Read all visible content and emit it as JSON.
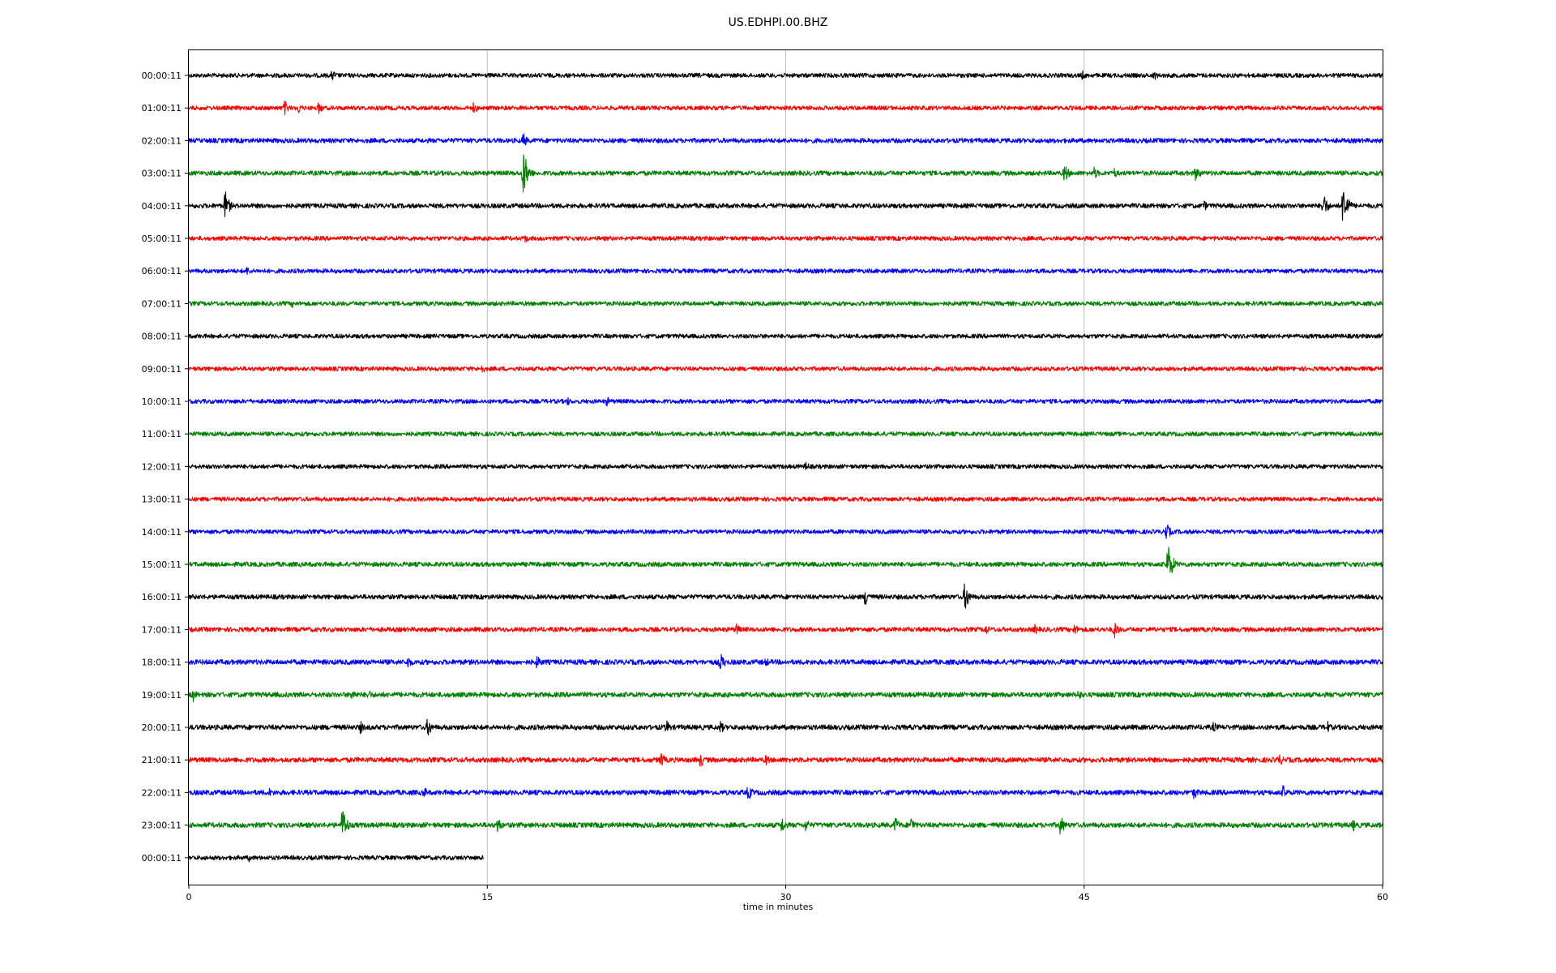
{
  "chart_data": {
    "type": "line",
    "title": "US.EDHPI.00.BHZ",
    "xlabel": "time in minutes",
    "ylabel": "",
    "xlim": [
      0,
      60
    ],
    "x_ticks": [
      0,
      15,
      30,
      45,
      60
    ],
    "x_tick_labels": [
      "0",
      "15",
      "30",
      "45",
      "60"
    ],
    "grid": "vertical lines at x ticks",
    "color_cycle": [
      "#000000",
      "#ff0000",
      "#0000ff",
      "#008000"
    ],
    "rows": [
      {
        "label": "00:00:11",
        "color": "#000000",
        "end_minute": 60,
        "noise": 0.12,
        "events": [
          {
            "t": 7.2,
            "amp": 0.35
          },
          {
            "t": 44.9,
            "amp": 0.3
          },
          {
            "t": 48.5,
            "amp": 0.3
          }
        ]
      },
      {
        "label": "01:00:11",
        "color": "#ff0000",
        "end_minute": 60,
        "noise": 0.12,
        "events": [
          {
            "t": 4.8,
            "amp": 0.45
          },
          {
            "t": 5.5,
            "amp": 0.35
          },
          {
            "t": 6.5,
            "amp": 0.4
          },
          {
            "t": 14.3,
            "amp": 0.35
          }
        ]
      },
      {
        "label": "02:00:11",
        "color": "#0000ff",
        "end_minute": 60,
        "noise": 0.13,
        "events": [
          {
            "t": 16.8,
            "amp": 0.45
          }
        ]
      },
      {
        "label": "03:00:11",
        "color": "#008000",
        "end_minute": 60,
        "noise": 0.13,
        "events": [
          {
            "t": 16.8,
            "amp": 1.5
          },
          {
            "t": 44.0,
            "amp": 0.6
          },
          {
            "t": 45.5,
            "amp": 0.4
          },
          {
            "t": 46.5,
            "amp": 0.35
          },
          {
            "t": 50.6,
            "amp": 0.5
          }
        ]
      },
      {
        "label": "04:00:11",
        "color": "#000000",
        "end_minute": 60,
        "noise": 0.13,
        "events": [
          {
            "t": 1.8,
            "amp": 0.9
          },
          {
            "t": 51.0,
            "amp": 0.35
          },
          {
            "t": 57.0,
            "amp": 0.8
          },
          {
            "t": 58.0,
            "amp": 1.4
          }
        ]
      },
      {
        "label": "05:00:11",
        "color": "#ff0000",
        "end_minute": 60,
        "noise": 0.12,
        "events": [
          {
            "t": 16.9,
            "amp": 0.3
          }
        ]
      },
      {
        "label": "06:00:11",
        "color": "#0000ff",
        "end_minute": 60,
        "noise": 0.12,
        "events": [
          {
            "t": 2.9,
            "amp": 0.3
          }
        ]
      },
      {
        "label": "07:00:11",
        "color": "#008000",
        "end_minute": 60,
        "noise": 0.12,
        "events": [
          {
            "t": 5.2,
            "amp": 0.25
          }
        ]
      },
      {
        "label": "08:00:11",
        "color": "#000000",
        "end_minute": 60,
        "noise": 0.12,
        "events": []
      },
      {
        "label": "09:00:11",
        "color": "#ff0000",
        "end_minute": 60,
        "noise": 0.12,
        "events": [
          {
            "t": 14.7,
            "amp": 0.3
          }
        ]
      },
      {
        "label": "10:00:11",
        "color": "#0000ff",
        "end_minute": 60,
        "noise": 0.12,
        "events": [
          {
            "t": 19.0,
            "amp": 0.3
          },
          {
            "t": 21.0,
            "amp": 0.3
          }
        ]
      },
      {
        "label": "11:00:11",
        "color": "#008000",
        "end_minute": 60,
        "noise": 0.12,
        "events": []
      },
      {
        "label": "12:00:11",
        "color": "#000000",
        "end_minute": 60,
        "noise": 0.12,
        "events": [
          {
            "t": 31.0,
            "amp": 0.3
          }
        ]
      },
      {
        "label": "13:00:11",
        "color": "#ff0000",
        "end_minute": 60,
        "noise": 0.12,
        "events": []
      },
      {
        "label": "14:00:11",
        "color": "#0000ff",
        "end_minute": 60,
        "noise": 0.12,
        "events": [
          {
            "t": 49.1,
            "amp": 0.6
          }
        ]
      },
      {
        "label": "15:00:11",
        "color": "#008000",
        "end_minute": 60,
        "noise": 0.13,
        "events": [
          {
            "t": 49.2,
            "amp": 1.3
          }
        ]
      },
      {
        "label": "16:00:11",
        "color": "#000000",
        "end_minute": 60,
        "noise": 0.13,
        "events": [
          {
            "t": 34.0,
            "amp": 0.6
          },
          {
            "t": 39.0,
            "amp": 0.9
          }
        ]
      },
      {
        "label": "17:00:11",
        "color": "#ff0000",
        "end_minute": 60,
        "noise": 0.13,
        "events": [
          {
            "t": 27.5,
            "amp": 0.4
          },
          {
            "t": 40.0,
            "amp": 0.4
          },
          {
            "t": 42.5,
            "amp": 0.35
          },
          {
            "t": 44.5,
            "amp": 0.4
          },
          {
            "t": 46.5,
            "amp": 0.55
          }
        ]
      },
      {
        "label": "18:00:11",
        "color": "#0000ff",
        "end_minute": 60,
        "noise": 0.14,
        "events": [
          {
            "t": 11.0,
            "amp": 0.4
          },
          {
            "t": 17.5,
            "amp": 0.45
          },
          {
            "t": 26.7,
            "amp": 0.6
          },
          {
            "t": 29.0,
            "amp": 0.3
          }
        ]
      },
      {
        "label": "19:00:11",
        "color": "#008000",
        "end_minute": 60,
        "noise": 0.14,
        "events": [
          {
            "t": 0.2,
            "amp": 0.4
          },
          {
            "t": 8.2,
            "amp": 0.4
          },
          {
            "t": 9.0,
            "amp": 0.35
          },
          {
            "t": 44.7,
            "amp": 0.35
          }
        ]
      },
      {
        "label": "20:00:11",
        "color": "#000000",
        "end_minute": 60,
        "noise": 0.14,
        "events": [
          {
            "t": 8.6,
            "amp": 0.4
          },
          {
            "t": 12.0,
            "amp": 0.6
          },
          {
            "t": 24.0,
            "amp": 0.45
          },
          {
            "t": 26.7,
            "amp": 0.4
          },
          {
            "t": 51.5,
            "amp": 0.35
          },
          {
            "t": 57.2,
            "amp": 0.4
          }
        ]
      },
      {
        "label": "21:00:11",
        "color": "#ff0000",
        "end_minute": 60,
        "noise": 0.14,
        "events": [
          {
            "t": 23.7,
            "amp": 0.55
          },
          {
            "t": 25.7,
            "amp": 0.5
          },
          {
            "t": 29.0,
            "amp": 0.35
          },
          {
            "t": 54.8,
            "amp": 0.4
          }
        ]
      },
      {
        "label": "22:00:11",
        "color": "#0000ff",
        "end_minute": 60,
        "noise": 0.14,
        "events": [
          {
            "t": 4.0,
            "amp": 0.3
          },
          {
            "t": 11.8,
            "amp": 0.35
          },
          {
            "t": 28.1,
            "amp": 0.5
          },
          {
            "t": 50.5,
            "amp": 0.45
          },
          {
            "t": 55.0,
            "amp": 0.45
          }
        ]
      },
      {
        "label": "23:00:11",
        "color": "#008000",
        "end_minute": 60,
        "noise": 0.14,
        "events": [
          {
            "t": 7.7,
            "amp": 1.2
          },
          {
            "t": 15.5,
            "amp": 0.5
          },
          {
            "t": 29.8,
            "amp": 0.5
          },
          {
            "t": 31.0,
            "amp": 0.4
          },
          {
            "t": 35.5,
            "amp": 0.55
          },
          {
            "t": 36.3,
            "amp": 0.5
          },
          {
            "t": 43.8,
            "amp": 0.6
          },
          {
            "t": 58.5,
            "amp": 0.4
          }
        ]
      },
      {
        "label": "00:00:11",
        "color": "#000000",
        "end_minute": 14.8,
        "noise": 0.12,
        "events": [
          {
            "t": 3.0,
            "amp": 0.25
          }
        ]
      }
    ]
  }
}
